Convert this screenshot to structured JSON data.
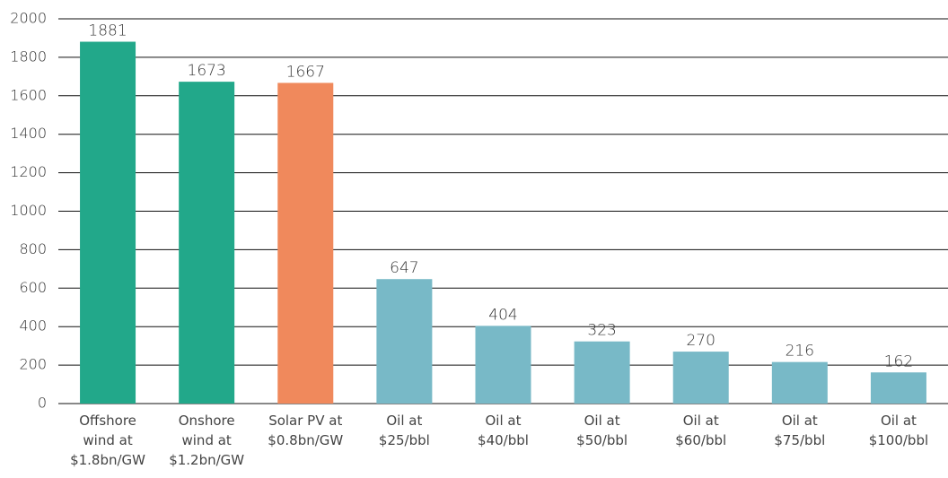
{
  "chart_data": {
    "type": "bar",
    "categories": [
      "Offshore\nwind at\n$1.8bn/GW",
      "Onshore\nwind at\n$1.2bn/GW",
      "Solar PV at\n$0.8bn/GW",
      "Oil at\n$25/bbl",
      "Oil at\n$40/bbl",
      "Oil at\n$50/bbl",
      "Oil at\n$60/bbl",
      "Oil at\n$75/bbl",
      "Oil at\n$100/bbl"
    ],
    "values": [
      1881,
      1673,
      1667,
      647,
      404,
      323,
      270,
      216,
      162
    ],
    "colors": [
      "#22a88a",
      "#22a88a",
      "#f0895c",
      "#78b9c7",
      "#78b9c7",
      "#78b9c7",
      "#78b9c7",
      "#78b9c7",
      "#78b9c7"
    ],
    "ylim": [
      0,
      2000
    ],
    "yticks": [
      0,
      200,
      400,
      600,
      800,
      1000,
      1200,
      1400,
      1600,
      1800,
      2000
    ],
    "grid": true
  }
}
